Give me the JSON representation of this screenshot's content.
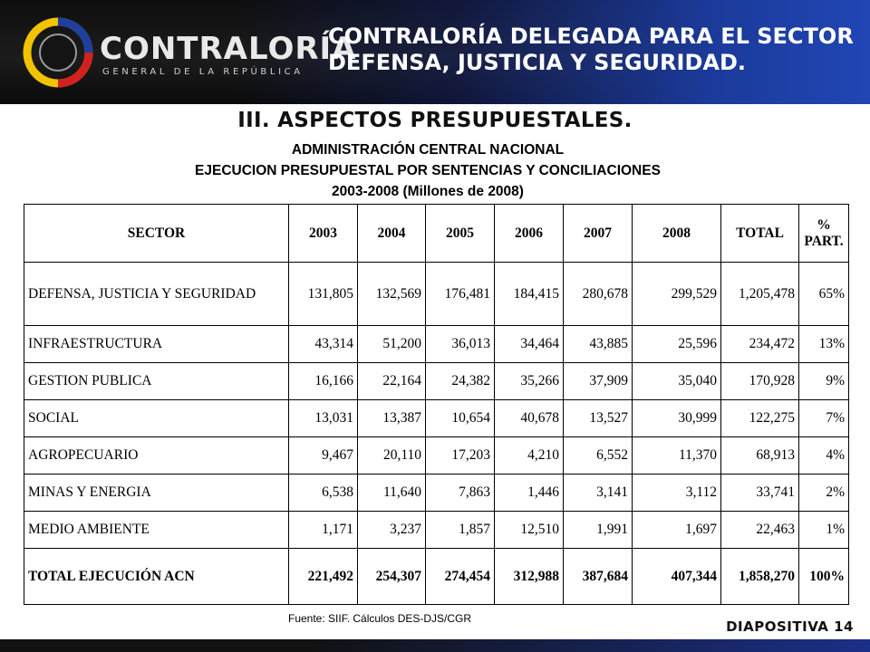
{
  "header": {
    "logo_name": "CONTRALORÍA",
    "logo_subtitle": "GENERAL DE LA REPÚBLICA",
    "title_line1": "CONTRALORÍA DELEGADA PARA EL SECTOR",
    "title_line2": "DEFENSA, JUSTICIA Y SEGURIDAD."
  },
  "page_title": "III. ASPECTOS PRESUPUESTALES.",
  "subtitles": [
    "ADMINISTRACIÓN CENTRAL NACIONAL",
    "EJECUCION PRESUPUESTAL POR SENTENCIAS Y CONCILIACIONES",
    "2003-2008 (Millones de 2008)"
  ],
  "table": {
    "headers": [
      "SECTOR",
      "2003",
      "2004",
      "2005",
      "2006",
      "2007",
      "2008",
      "TOTAL",
      "% PART."
    ],
    "rows": [
      [
        "DEFENSA, JUSTICIA Y SEGURIDAD",
        "131,805",
        "132,569",
        "176,481",
        "184,415",
        "280,678",
        "299,529",
        "1,205,478",
        "65%"
      ],
      [
        "INFRAESTRUCTURA",
        "43,314",
        "51,200",
        "36,013",
        "34,464",
        "43,885",
        "25,596",
        "234,472",
        "13%"
      ],
      [
        "GESTION PUBLICA",
        "16,166",
        "22,164",
        "24,382",
        "35,266",
        "37,909",
        "35,040",
        "170,928",
        "9%"
      ],
      [
        "SOCIAL",
        "13,031",
        "13,387",
        "10,654",
        "40,678",
        "13,527",
        "30,999",
        "122,275",
        "7%"
      ],
      [
        "AGROPECUARIO",
        "9,467",
        "20,110",
        "17,203",
        "4,210",
        "6,552",
        "11,370",
        "68,913",
        "4%"
      ],
      [
        "MINAS Y ENERGIA",
        "6,538",
        "11,640",
        "7,863",
        "1,446",
        "3,141",
        "3,112",
        "33,741",
        "2%"
      ],
      [
        "MEDIO AMBIENTE",
        "1,171",
        "3,237",
        "1,857",
        "12,510",
        "1,991",
        "1,697",
        "22,463",
        "1%"
      ]
    ],
    "total": [
      "TOTAL EJECUCIÓN ACN",
      "221,492",
      "254,307",
      "274,454",
      "312,988",
      "387,684",
      "407,344",
      "1,858,270",
      "100%"
    ]
  },
  "source": "Fuente: SIIF. Cálculos DES-DJS/CGR",
  "slide_label": "DIAPOSITIVA 14",
  "colors": {
    "logo_yellow": "#f2c300",
    "logo_blue": "#1f3e9e",
    "logo_red": "#d42020",
    "header_blue": "#2146b4"
  }
}
